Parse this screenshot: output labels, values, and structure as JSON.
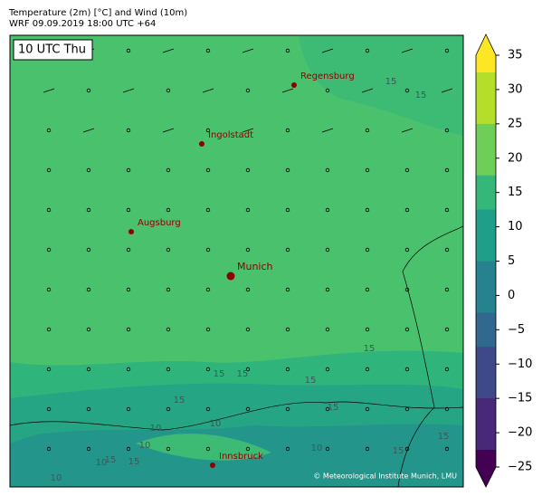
{
  "header": {
    "title": "Temperature (2m) [°C] and Wind (10m)",
    "subtitle": "WRF 09.09.2019 18:00 UTC +64"
  },
  "map": {
    "time_label": "10 UTC Thu",
    "cities": [
      "Regensburg",
      "Ingolstadt",
      "Augsburg",
      "Munich",
      "Innsbruck"
    ],
    "contour_labels": [
      15,
      15,
      15,
      15,
      15,
      15,
      15,
      10,
      10,
      10,
      15,
      10,
      15,
      15,
      10,
      10,
      15,
      15
    ],
    "credit": "© Meteorological Institute Munich, LMU"
  },
  "colorbar": {
    "clim": [
      -25,
      35
    ],
    "ticks": [
      35,
      30,
      25,
      20,
      15,
      10,
      5,
      0,
      {
        "value": -5,
        "label": "−5"
      },
      {
        "value": -10,
        "label": "−10"
      },
      {
        "value": -15,
        "label": "−15"
      },
      {
        "value": -20,
        "label": "−20"
      },
      {
        "value": -25,
        "label": "−25"
      }
    ]
  }
}
